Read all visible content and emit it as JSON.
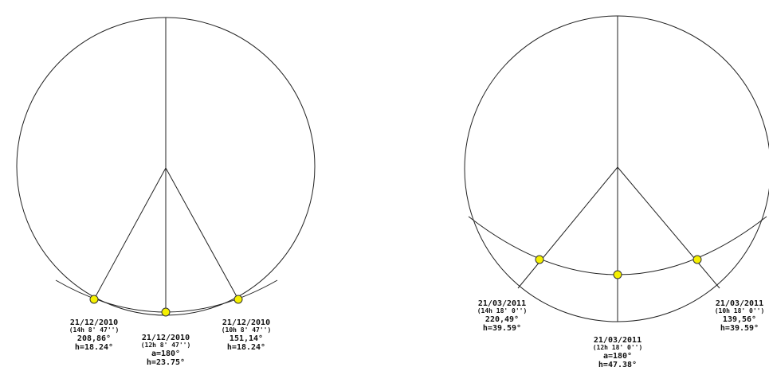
{
  "diagrams": [
    {
      "points": [
        {
          "date": "21/12/2010",
          "time": "(14h 8' 47'')",
          "azimuth": "208,86°",
          "height": "h=18.24°"
        },
        {
          "date": "21/12/2010",
          "time": "(12h 8' 47'')",
          "azimuth": "a=180°",
          "height": "h=23.75°"
        },
        {
          "date": "21/12/2010",
          "time": "(10h 8' 47'')",
          "azimuth": "151,14°",
          "height": "h=18.24°"
        }
      ]
    },
    {
      "points": [
        {
          "date": "21/03/2011",
          "time": "(14h 18' 0'')",
          "azimuth": "220,49°",
          "height": "h=39.59°"
        },
        {
          "date": "21/03/2011",
          "time": "(12h 18' 0'')",
          "azimuth": "a=180°",
          "height": "h=47.38°"
        },
        {
          "date": "21/03/2011",
          "time": "(10h 18' 0'')",
          "azimuth": "139,56°",
          "height": "h=39.59°"
        }
      ]
    }
  ]
}
